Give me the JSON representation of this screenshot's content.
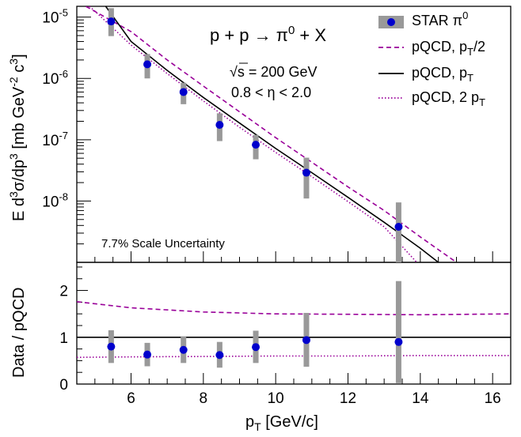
{
  "chart_data": [
    {
      "type": "scatter",
      "panel": "top",
      "y_scale": "log",
      "xlim": [
        4.5,
        16.5
      ],
      "ylim": [
        1e-09,
        1.5e-05
      ],
      "ylabel": {
        "main": "E d",
        "sup1": "3",
        "mid1": "σ/dp",
        "sup2": "3",
        "mid2": " [mb GeV",
        "sup3": "-2",
        "mid3": " c",
        "sup4": "3",
        "end": "]"
      },
      "y_ticks": [
        {
          "value": 1e-05,
          "base": "10",
          "exp": "-5"
        },
        {
          "value": 1e-06,
          "base": "10",
          "exp": "-6"
        },
        {
          "value": 1e-07,
          "base": "10",
          "exp": "-7"
        },
        {
          "value": 1e-08,
          "base": "10",
          "exp": "-8"
        }
      ],
      "annotations": {
        "reaction": "p + p → π",
        "reaction_sup": "0",
        "reaction_tail": " + X",
        "energy": "s = 200 GeV",
        "sqrt_symbol": "√",
        "eta_range": "0.8 < η < 2.0",
        "scale_uncertainty": "7.7% Scale Uncertainty"
      },
      "series": [
        {
          "name": "STAR π0",
          "kind": "points",
          "color": "#0000cc",
          "error_color": "#999999",
          "x": [
            5.45,
            6.45,
            7.45,
            8.45,
            9.45,
            10.85,
            13.4
          ],
          "y": [
            8.5e-06,
            1.7e-06,
            6e-07,
            1.75e-07,
            8.3e-08,
            2.9e-08,
            3.8e-09
          ],
          "y_low": [
            4.9e-06,
            1e-06,
            3.8e-07,
            9.5e-08,
            4.8e-08,
            1.1e-08,
            1e-09
          ],
          "y_high": [
            1.4e-05,
            2.5e-06,
            8.5e-07,
            2.7e-07,
            1.2e-07,
            5.1e-08,
            9.5e-09
          ]
        },
        {
          "name": "pQCD, pT/2",
          "kind": "curve",
          "style": "dashed",
          "color": "#990099",
          "x": [
            4.75,
            6,
            7,
            8,
            9,
            10,
            11,
            12,
            13,
            14,
            15
          ],
          "y": [
            1.5e-05,
            5.8e-06,
            2e-06,
            7.5e-07,
            2.85e-07,
            1.08e-07,
            4.3e-08,
            1.7e-08,
            7e-09,
            2.6e-09,
            1e-09
          ]
        },
        {
          "name": "pQCD, pT",
          "kind": "curve",
          "style": "solid",
          "color": "#000000",
          "x": [
            5.3,
            6,
            7,
            8,
            9,
            10,
            11,
            12,
            13,
            14,
            14.5
          ],
          "y": [
            1.5e-05,
            4e-06,
            1.35e-06,
            4.9e-07,
            1.87e-07,
            7.2e-08,
            2.9e-08,
            1.15e-08,
            4.5e-09,
            1.7e-09,
            1e-09
          ]
        },
        {
          "name": "pQCD, 2 pT",
          "kind": "curve",
          "style": "dotted",
          "color": "#990099",
          "x": [
            4.85,
            5,
            6,
            7,
            8,
            9,
            10,
            11,
            12,
            13,
            13.9
          ],
          "y": [
            1.5e-05,
            1.25e-05,
            3.5e-06,
            1.2e-06,
            4.3e-07,
            1.6e-07,
            6.2e-08,
            2.5e-08,
            9.8e-09,
            3.8e-09,
            1e-09
          ]
        }
      ],
      "legend": {
        "placement": "top-right",
        "entries": [
          {
            "main": "STAR π",
            "sup": "0"
          },
          {
            "main": "pQCD, p",
            "sub": "T",
            "tail": "/2"
          },
          {
            "main": "pQCD, p",
            "sub": "T",
            "tail": ""
          },
          {
            "main": "pQCD, 2 p",
            "sub": "T",
            "tail": ""
          }
        ]
      }
    },
    {
      "type": "scatter",
      "panel": "bottom",
      "xlim": [
        4.5,
        16.5
      ],
      "ylim": [
        0,
        2.6
      ],
      "xlabel": {
        "main": "p",
        "sub": "T",
        "tail": " [GeV/c]"
      },
      "ylabel": "Data / pQCD",
      "x_ticks": [
        "6",
        "8",
        "10",
        "12",
        "14",
        "16"
      ],
      "y_ticks": [
        "0",
        "1",
        "2"
      ],
      "series": [
        {
          "name": "STAR π0",
          "kind": "points",
          "color": "#0000cc",
          "error_color": "#999999",
          "x": [
            5.45,
            6.45,
            7.45,
            8.45,
            9.45,
            10.85,
            13.4
          ],
          "y": [
            0.8,
            0.63,
            0.73,
            0.62,
            0.79,
            0.94,
            0.9
          ],
          "y_low": [
            0.45,
            0.38,
            0.45,
            0.35,
            0.45,
            0.37,
            0.02
          ],
          "y_high": [
            1.15,
            0.88,
            1.02,
            0.9,
            1.14,
            1.52,
            2.2
          ]
        },
        {
          "name": "pT/2 ratio",
          "kind": "curve",
          "style": "dashed",
          "color": "#990099",
          "x": [
            4.5,
            6,
            8,
            10,
            12,
            14,
            16.5
          ],
          "y": [
            1.76,
            1.63,
            1.54,
            1.5,
            1.49,
            1.48,
            1.5
          ]
        },
        {
          "name": "pT ratio",
          "kind": "curve",
          "style": "solid",
          "color": "#000000",
          "x": [
            4.5,
            16.5
          ],
          "y": [
            1.0,
            1.0
          ]
        },
        {
          "name": "2 pT ratio",
          "kind": "curve",
          "style": "dotted",
          "color": "#990099",
          "x": [
            4.5,
            6,
            8,
            10,
            12,
            14,
            16.5
          ],
          "y": [
            0.57,
            0.58,
            0.59,
            0.6,
            0.6,
            0.61,
            0.61
          ]
        }
      ]
    }
  ]
}
